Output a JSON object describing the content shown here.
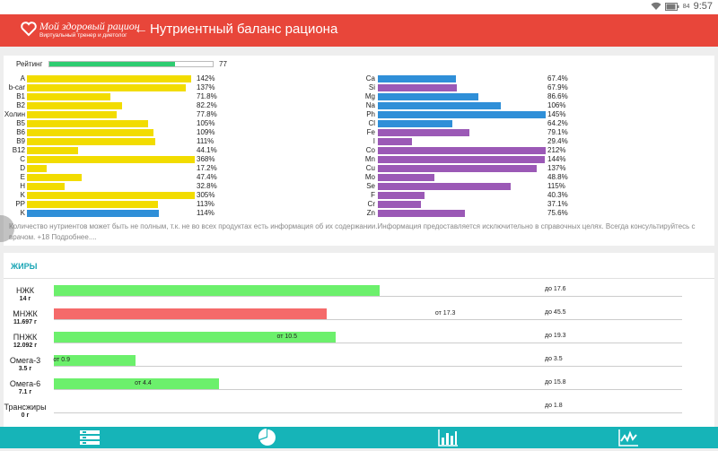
{
  "status": {
    "battery": "84",
    "time": "9:57"
  },
  "header": {
    "logo_title": "Мой здоровый рацион",
    "logo_subtitle": "Виртуальный тренер и диетолог",
    "title": "Нутриентный баланс рациона"
  },
  "rating": {
    "label": "Рейтинг",
    "value": "77",
    "fraction": 0.77
  },
  "vitamins": [
    {
      "label": "A",
      "value": "142%",
      "pct": 142,
      "color": "#f2dc00"
    },
    {
      "label": "b-car",
      "value": "137%",
      "pct": 137,
      "color": "#f2dc00"
    },
    {
      "label": "B1",
      "value": "71.8%",
      "pct": 71.8,
      "color": "#f2dc00"
    },
    {
      "label": "B2",
      "value": "82.2%",
      "pct": 82.2,
      "color": "#f2dc00"
    },
    {
      "label": "Холин",
      "value": "77.8%",
      "pct": 77.8,
      "color": "#f2dc00"
    },
    {
      "label": "B5",
      "value": "105%",
      "pct": 105,
      "color": "#f2dc00"
    },
    {
      "label": "B6",
      "value": "109%",
      "pct": 109,
      "color": "#f2dc00"
    },
    {
      "label": "B9",
      "value": "111%",
      "pct": 111,
      "color": "#f2dc00"
    },
    {
      "label": "B12",
      "value": "44.1%",
      "pct": 44.1,
      "color": "#f2dc00"
    },
    {
      "label": "C",
      "value": "368%",
      "pct": 368,
      "color": "#f2dc00"
    },
    {
      "label": "D",
      "value": "17.2%",
      "pct": 17.2,
      "color": "#f2dc00"
    },
    {
      "label": "E",
      "value": "47.4%",
      "pct": 47.4,
      "color": "#f2dc00"
    },
    {
      "label": "H",
      "value": "32.8%",
      "pct": 32.8,
      "color": "#f2dc00"
    },
    {
      "label": "K",
      "value": "305%",
      "pct": 305,
      "color": "#f2dc00"
    },
    {
      "label": "PP",
      "value": "113%",
      "pct": 113,
      "color": "#f2dc00"
    },
    {
      "label": "K",
      "value": "114%",
      "pct": 114,
      "color": "#2f8fd8"
    }
  ],
  "minerals": [
    {
      "label": "Ca",
      "value": "67.4%",
      "pct": 67.4,
      "color": "#2f8fd8"
    },
    {
      "label": "Si",
      "value": "67.9%",
      "pct": 67.9,
      "color": "#9b59b6"
    },
    {
      "label": "Mg",
      "value": "86.6%",
      "pct": 86.6,
      "color": "#2f8fd8"
    },
    {
      "label": "Na",
      "value": "106%",
      "pct": 106,
      "color": "#2f8fd8"
    },
    {
      "label": "Ph",
      "value": "145%",
      "pct": 145,
      "color": "#2f8fd8"
    },
    {
      "label": "Cl",
      "value": "64.2%",
      "pct": 64.2,
      "color": "#2f8fd8"
    },
    {
      "label": "Fe",
      "value": "79.1%",
      "pct": 79.1,
      "color": "#9b59b6"
    },
    {
      "label": "I",
      "value": "29.4%",
      "pct": 29.4,
      "color": "#9b59b6"
    },
    {
      "label": "Co",
      "value": "212%",
      "pct": 212,
      "color": "#9b59b6"
    },
    {
      "label": "Mn",
      "value": "144%",
      "pct": 144,
      "color": "#9b59b6"
    },
    {
      "label": "Cu",
      "value": "137%",
      "pct": 137,
      "color": "#9b59b6"
    },
    {
      "label": "Mo",
      "value": "48.8%",
      "pct": 48.8,
      "color": "#9b59b6"
    },
    {
      "label": "Se",
      "value": "115%",
      "pct": 115,
      "color": "#9b59b6"
    },
    {
      "label": "F",
      "value": "40.3%",
      "pct": 40.3,
      "color": "#9b59b6"
    },
    {
      "label": "Cr",
      "value": "37.1%",
      "pct": 37.1,
      "color": "#9b59b6"
    },
    {
      "label": "Zn",
      "value": "75.6%",
      "pct": 75.6,
      "color": "#9b59b6"
    }
  ],
  "disclaimer": "Количество нутриентов может быть не полным, т.к. не во всех продуктах есть информация об их содержании.Информация предоставляется исключительно в справочных целях. Всегда консультируйтесь с врачом. +18 Подробнее....",
  "fats": {
    "title": "ЖИРЫ",
    "rows": [
      {
        "name": "НЖК",
        "amount": "14 г",
        "value": 14,
        "from": "",
        "from_val": null,
        "to": "до 17.6",
        "to_val": 17.6,
        "color": "#6cf06c"
      },
      {
        "name": "МНЖК",
        "amount": "11.697 г",
        "value": 11.697,
        "from": "от 17.3",
        "from_val": 17.3,
        "to": "до 45.5",
        "to_val": 45.5,
        "color": "#f56a6a"
      },
      {
        "name": "ПНЖК",
        "amount": "12.092 г",
        "value": 12.092,
        "from": "от 10.5",
        "from_val": 10.5,
        "to": "до 19.3",
        "to_val": 19.3,
        "color": "#6cf06c"
      },
      {
        "name": "Омега-3",
        "amount": "3.5 г",
        "value": 3.5,
        "from": "от 0.9",
        "from_val": 0.9,
        "to": "до 3.5",
        "to_val": 3.5,
        "color": "#6cf06c"
      },
      {
        "name": "Омега-6",
        "amount": "7.1 г",
        "value": 7.1,
        "from": "от 4.4",
        "from_val": 4.4,
        "to": "до 15.8",
        "to_val": 15.8,
        "color": "#6cf06c"
      },
      {
        "name": "Трансжиры",
        "amount": "0 г",
        "value": 0,
        "from": "",
        "from_val": null,
        "to": "до 1.8",
        "to_val": 1.8,
        "color": "#6cf06c"
      }
    ]
  },
  "nav": [
    {
      "icon": "list-icon"
    },
    {
      "icon": "pie-chart-icon"
    },
    {
      "icon": "bar-chart-icon"
    },
    {
      "icon": "line-chart-icon"
    }
  ]
}
